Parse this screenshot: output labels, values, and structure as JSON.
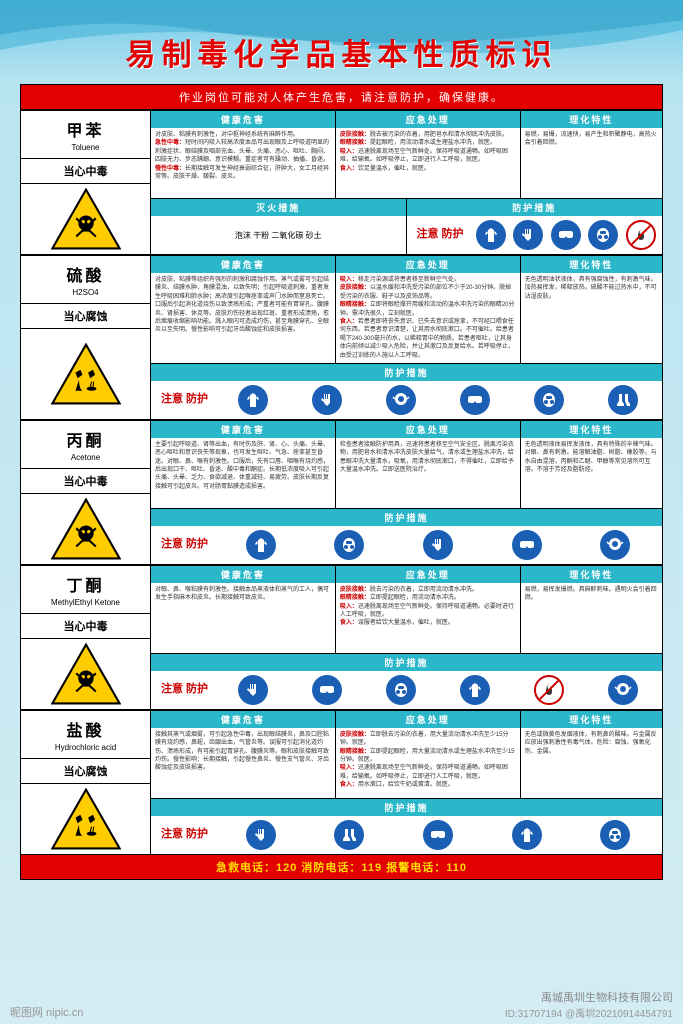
{
  "title": "易制毒化学品基本性质标识",
  "warning_bar": "作业岗位可能对人体产生危害，请注意防护，确保健康。",
  "section_headers": {
    "health": "健康危害",
    "emergency": "应急处理",
    "properties": "理化特性",
    "fire": "灭火措施",
    "protect": "防护措施"
  },
  "protect_label": "注意\n防护",
  "footer": "急救电话：120        消防电话：119        报警电话：110",
  "watermark": "昵图网 nipic.cn",
  "meta_id": "ID:31707194  @禹圳20210914454791",
  "meta_company": "禹城禹圳生物科技有限公司",
  "colors": {
    "title": "#e30000",
    "header_bg": "#29b7c9",
    "ppe_bg": "#1a5fb4",
    "bar_bg": "#e30000",
    "footer_text": "#ffdb00",
    "hazard_fill": "#ffcc00"
  },
  "chemicals": [
    {
      "name_cn": "甲苯",
      "name_en": "Toluene",
      "warn": "当心中毒",
      "hazard_type": "skull",
      "health": "对皮肤、粘膜有刺激性，对中枢神经系统有麻醉作用。\n急性中毒：短时间内吸入较高浓度本品可出现眼及上呼吸道明显的刺激症状、眼结膜及咽部充血、头晕、头痛、恶心、呕吐、胸闷、四肢无力、步态蹒跚、意识模糊。重症者可有躁动、抽搐、昏迷。\n慢性中毒：长期接触可发生神经衰弱综合征，肝肿大，女工月经异常等。皮肤干燥、皲裂、皮炎。",
      "emergency": "皮肤接触：脱去被污染的衣着，用肥皂水和清水彻底冲洗皮肤。\n眼睛接触：提起眼睑，用流动清水或生理盐水冲洗，就医。\n吸入：迅速脱离现场至空气新鲜处。保持呼吸道通畅。如呼吸困难，给输氧。如呼吸停止，立即进行人工呼吸，就医。\n食入：饮足量温水，催吐，就医。",
      "properties": "易燃，易爆，流速快，易产生和积聚静电，高热火会引着回燃。",
      "fire": "泡沫  干粉  二氧化碳  砂土",
      "ppe": [
        "suit",
        "gloves",
        "goggles",
        "mask",
        "nofire"
      ]
    },
    {
      "name_cn": "硫酸",
      "name_en": "H2SO4",
      "warn": "当心腐蚀",
      "hazard_type": "corrosive",
      "health": "对皮肤、粘膜等组织有强烈的刺激和腐蚀作用。蒸气或雾可引起结膜炎、结膜水肿、角膜混浊，以致失明；引起呼吸道刺激，重者发生呼吸困难和肺水肿；高浓度引起喉痉挛或声门水肿而窒息死亡。口服后引起消化道烧伤以致溃疡形成；严重者可能有胃穿孔、腹膜炎、肾损害、休克等。皮肤灼伤轻者出现红斑、重者形成溃疡，愈后癍痕收缩影响功能。溅入眼内可造成灼伤，甚至角膜穿孔、全眼炎以至失明。慢性影响可引起牙齿酸蚀症和皮肤损害。",
      "emergency": "吸入：移走污染源或将患者移至新鲜空气处。\n皮肤接触：以温水缓和冲洗受污染的部位不少于20-30分钟。脱掉受污染的衣服、鞋子以及皮饰品等。\n眼睛接触：立即将眼睑撑开用缓和流动的温水冲洗污染的眼睛20分钟。需冲洗很久，立刻就医。\n食入：若患者即将丧失意识、已失去意识或痉挛，不可经口喂食任何东西。若患者意识清楚，让其用水彻底漱口。不可催吐。给患者喝下240-300毫升的水，以稀释胃中的物质。若患者呕吐，让其身体向前倾以减少吸入危险，并让其漱口及反复给水。若呼吸停止，由受过训练的人施以人工呼吸。",
      "properties": "无色透明油状液体，具有强腐蚀性，有刺激气味。加热易挥发，稀释放热。硫酸不能过热水中，不可沾湿皮肤。",
      "ppe": [
        "suit",
        "gloves",
        "respirator",
        "goggles",
        "mask",
        "boots"
      ]
    },
    {
      "name_cn": "丙酮",
      "name_en": "Acetone",
      "warn": "当心中毒",
      "hazard_type": "skull",
      "health": "主要引起呼吸道、肾等出血，有时伤及肝、肾、心、头痛、头晕、恶心呕吐和意识丧失等现象，也可发生呕吐、气急、痉挛甚至昏迷。对眼、鼻、喉有刺激性。口服后，先有口唇、咽喉有烧灼感，后出现口干、呕吐、昏迷、酸中毒和酮症。长期低浓度吸入可引起头痛、头晕、乏力、食欲减退、体重减轻、易疲劳。皮肤长期反复接触可引起皮炎。可对肠胃黏膜造成损害。",
      "emergency": "检查患者接触防护用具，迅速将患者移至空气安全区。脱离污染衣物，用肥皂水和清水冲洗皮肤大量给气，清水或生理盐水冲洗，给患眼冲洗大量清水，吸氧，用清水彻底漱口，不得催吐，立即给予大量温水冲洗。立即送医院治疗。",
      "properties": "无色透明液体易挥发液体，具有特殊的辛辣气味。对眼、鼻有刺激。能溶解油脂、树脂、橡胶等。与水自由混溶，丙酮和乙醚、甲醇等常见溶剂可互溶。不溶于芳烃及脂肪烃。",
      "ppe": [
        "suit",
        "mask",
        "gloves",
        "goggles",
        "respirator"
      ]
    },
    {
      "name_cn": "丁酮",
      "name_en": "MethylEthyl Ketone",
      "warn": "当心中毒",
      "hazard_type": "skull",
      "health": "对眼、鼻、喉粘膜有刺激性。接触本品蒸液体和蒸气的工人，偶可发生手指麻木和皮炎。长期接触可致皮炎。",
      "emergency": "皮肤接触：脱去污染的衣着，立即用流动清水冲洗。\n眼睛接触：立即提起眼睑，用流动清水冲洗。\n吸入：迅速脱离现场至空气新鲜处。保持呼吸道通畅。必要时进行人工呼吸，就医。\n食入：误服者给饮大量温水，催吐，就医。",
      "properties": "易燃，易挥发爆燃。具麻醉刺味。遇明火会引着回燃。",
      "ppe": [
        "gloves",
        "goggles",
        "mask",
        "suit",
        "nofire",
        "respirator"
      ]
    },
    {
      "name_cn": "盐酸",
      "name_en": "Hydrochloric acid",
      "warn": "当心腐蚀",
      "hazard_type": "corrosive",
      "health": "接触其蒸气或烟雾，可引起急性中毒，出现眼结膜炎，鼻及口腔粘膜有烧灼感，鼻衄，齿龈出血，气管炎等。误服可引起消化道灼伤、溃疡形成，有可能引起胃穿孔、腹膜炎等。眼和皮肤接触可致灼伤。慢性影响：长期接触，引起慢性鼻炎、慢性支气管炎、牙齿酸蚀症及皮肤损害。",
      "emergency": "皮肤接触：立即脱去污染的衣着，用大量流动清水冲洗至少15分钟。就医。\n眼睛接触：立即提起眼睑，用大量流动清水或生理盐水冲洗至少15分钟。就医。\n吸入：迅速脱离现场至空气新鲜处。保持呼吸道通畅。如呼吸困难，给输氧。如呼吸停止，立即进行人工呼吸，就医。\n食入：用水漱口，给饮牛奶或蛋清。就医。",
      "properties": "无色或微黄色发烟液体，有刺鼻的酸味。与金属反应放出强刺激性有毒气体。危险：腐蚀、强氧化剂、金属。",
      "ppe": [
        "gloves",
        "boots",
        "goggles",
        "suit",
        "mask"
      ]
    }
  ]
}
